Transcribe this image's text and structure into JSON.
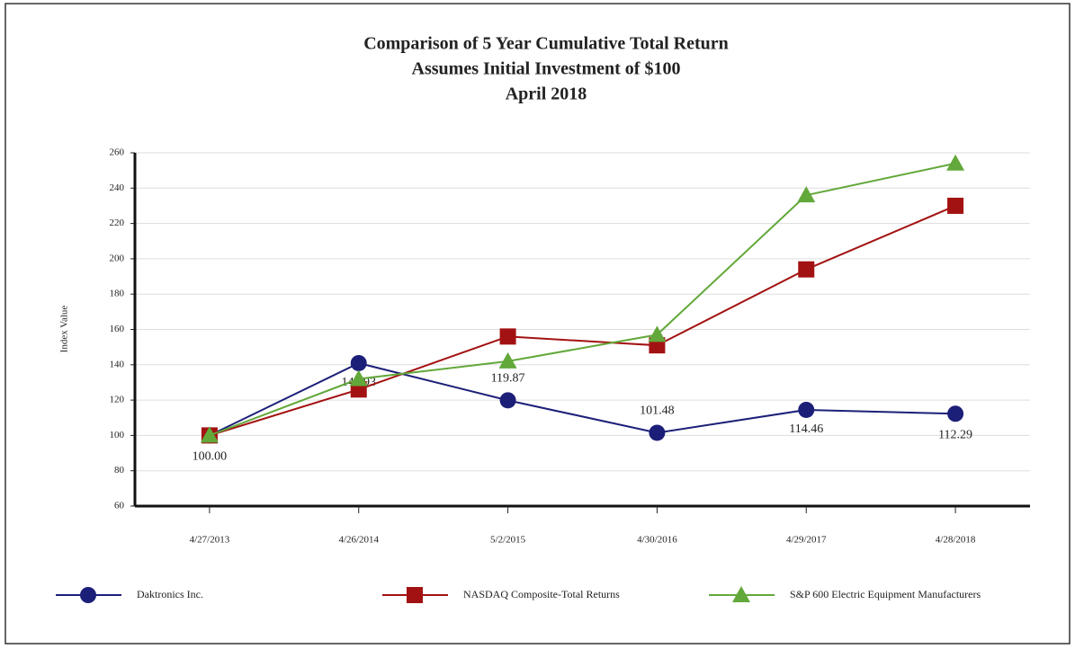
{
  "chart_data": {
    "type": "line",
    "title": [
      "Comparison of 5 Year Cumulative Total Return",
      "Assumes Initial Investment of $100",
      "April 2018"
    ],
    "ylabel": "Index Value",
    "categories": [
      "4/27/2013",
      "4/26/2014",
      "5/2/2015",
      "4/30/2016",
      "4/29/2017",
      "4/28/2018"
    ],
    "series": [
      {
        "name": "Daktronics Inc.",
        "color": "#1c1f78",
        "marker": "circle",
        "values": [
          100.0,
          140.93,
          119.87,
          101.48,
          114.46,
          112.29
        ],
        "value_labels": [
          "100.00",
          "140.93",
          "119.87",
          "101.48",
          "114.46",
          "112.29"
        ]
      },
      {
        "name": "NASDAQ Composite-Total Returns",
        "color": "#a31212",
        "marker": "square",
        "values": [
          100,
          126,
          156,
          151,
          194,
          230
        ]
      },
      {
        "name": "S&P 600 Electric Equipment Manufacturers",
        "color": "#62a83a",
        "marker": "triangle",
        "values": [
          100,
          132,
          142,
          157,
          236,
          254
        ]
      }
    ],
    "ylim": [
      60,
      260
    ],
    "yticks": [
      60,
      80,
      100,
      120,
      140,
      160,
      180,
      200,
      220,
      240,
      260
    ],
    "grid": true
  }
}
